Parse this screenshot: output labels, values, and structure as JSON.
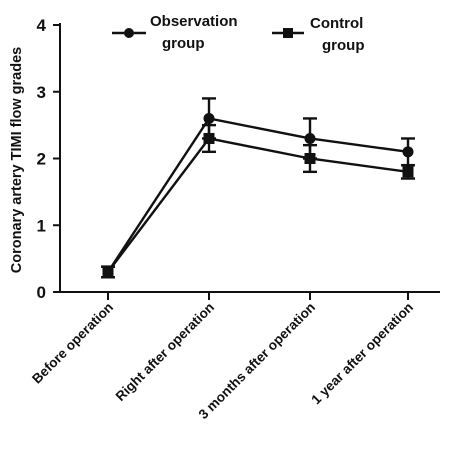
{
  "chart_data": {
    "type": "line",
    "categories": [
      "Before operation",
      "Right after operation",
      "3 months  after operation",
      "1 year after operation"
    ],
    "ylabel": "Coronary artery TIMI flow grades",
    "xlabel": "",
    "ylim": [
      0,
      4
    ],
    "yticks": [
      "0",
      "1",
      "2",
      "3",
      "4"
    ],
    "grid": false,
    "legend_position": "top",
    "series": [
      {
        "name": "Observation group",
        "marker": "circle",
        "values": [
          0.3,
          2.6,
          2.3,
          2.1
        ],
        "errors": [
          0.08,
          0.3,
          0.3,
          0.2
        ]
      },
      {
        "name": "Control group",
        "marker": "square",
        "values": [
          0.3,
          2.3,
          2.0,
          1.8
        ],
        "errors": [
          0.08,
          0.2,
          0.2,
          0.1
        ]
      }
    ]
  }
}
